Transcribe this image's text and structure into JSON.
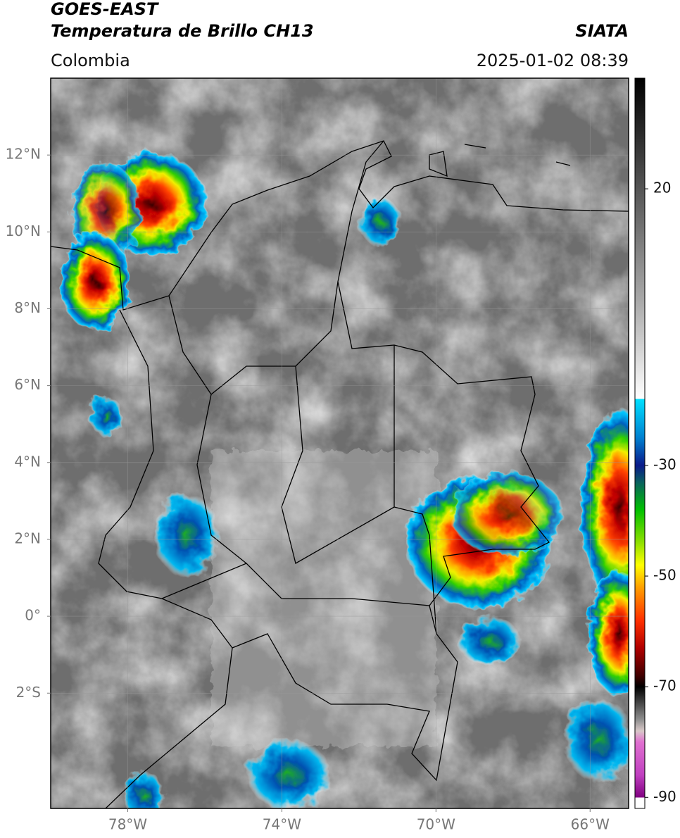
{
  "header": {
    "title": "GOES-EAST",
    "subtitle": "Temperatura de Brillo CH13",
    "source": "SIATA",
    "region": "Colombia",
    "datetime": "2025-01-02 08:39"
  },
  "map": {
    "lon_range": [
      -80,
      -65
    ],
    "lat_range": [
      -5,
      14
    ],
    "xticks": [
      {
        "value": -78,
        "label": "78°W"
      },
      {
        "value": -74,
        "label": "74°W"
      },
      {
        "value": -70,
        "label": "70°W"
      },
      {
        "value": -66,
        "label": "66°W"
      }
    ],
    "yticks": [
      {
        "value": 12,
        "label": "12°N"
      },
      {
        "value": 10,
        "label": "10°N"
      },
      {
        "value": 8,
        "label": "8°N"
      },
      {
        "value": 6,
        "label": "6°N"
      },
      {
        "value": 4,
        "label": "4°N"
      },
      {
        "value": 2,
        "label": "2°N"
      },
      {
        "value": 0,
        "label": "0°"
      },
      {
        "value": -2,
        "label": "2°S"
      }
    ],
    "grid": true
  },
  "colorbar": {
    "range": [
      40,
      -92
    ],
    "ticks": [
      20,
      -30,
      -50,
      -70,
      -90
    ],
    "colormap": [
      {
        "value": 40,
        "color": "#000000"
      },
      {
        "value": 20,
        "color": "#555555"
      },
      {
        "value": 0,
        "color": "#a8a8a8"
      },
      {
        "value": -18,
        "color": "#ffffff"
      },
      {
        "value": -18,
        "color": "#00e0ff"
      },
      {
        "value": -25,
        "color": "#0080d0"
      },
      {
        "value": -30,
        "color": "#0a1a8a"
      },
      {
        "value": -33,
        "color": "#0a6060"
      },
      {
        "value": -38,
        "color": "#00c000"
      },
      {
        "value": -44,
        "color": "#90e000"
      },
      {
        "value": -48,
        "color": "#ffff00"
      },
      {
        "value": -52,
        "color": "#ffa000"
      },
      {
        "value": -58,
        "color": "#ff3000"
      },
      {
        "value": -63,
        "color": "#b00000"
      },
      {
        "value": -68,
        "color": "#400000"
      },
      {
        "value": -70,
        "color": "#000000"
      },
      {
        "value": -72,
        "color": "#303030"
      },
      {
        "value": -76,
        "color": "#909090"
      },
      {
        "value": -78,
        "color": "#d8c8c8"
      },
      {
        "value": -80,
        "color": "#e070d0"
      },
      {
        "value": -86,
        "color": "#c040c0"
      },
      {
        "value": -90,
        "color": "#800080"
      },
      {
        "value": -90,
        "color": "#ffffff"
      },
      {
        "value": -92,
        "color": "#ffffff"
      }
    ]
  }
}
